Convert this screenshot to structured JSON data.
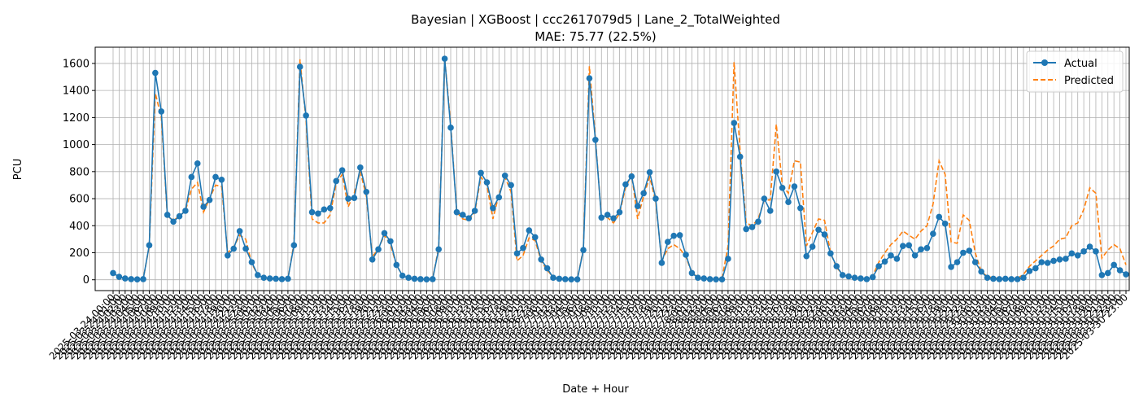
{
  "chart_data": {
    "type": "line",
    "title": "Bayesian | XGBoost | ccc2617079d5 | Lane_2_TotalWeighted",
    "subtitle": "MAE: 75.77 (22.5%)",
    "xlabel": "Date + Hour",
    "ylabel": "PCU",
    "ylim": [
      -80,
      1720
    ],
    "yticks": [
      0,
      200,
      400,
      600,
      800,
      1000,
      1200,
      1400,
      1600
    ],
    "grid": true,
    "legend_position": "top-right",
    "x_start_label": "2025-03-24 00:00",
    "x_end_label": "2025-03-30 23:00",
    "series": [
      {
        "name": "Actual",
        "color": "#1f77b4",
        "style": "solid-with-markers",
        "values": [
          50,
          22,
          10,
          5,
          3,
          5,
          255,
          1530,
          1245,
          480,
          430,
          470,
          510,
          760,
          860,
          540,
          590,
          760,
          740,
          180,
          230,
          360,
          230,
          130,
          35,
          15,
          10,
          8,
          5,
          8,
          255,
          1575,
          1215,
          500,
          490,
          520,
          530,
          730,
          810,
          600,
          605,
          830,
          650,
          150,
          225,
          345,
          285,
          110,
          30,
          15,
          8,
          5,
          3,
          5,
          225,
          1635,
          1125,
          500,
          480,
          455,
          510,
          790,
          720,
          530,
          610,
          770,
          700,
          195,
          235,
          365,
          315,
          150,
          85,
          15,
          8,
          5,
          3,
          3,
          220,
          1490,
          1035,
          460,
          480,
          455,
          500,
          705,
          765,
          545,
          640,
          795,
          600,
          125,
          280,
          325,
          330,
          185,
          50,
          15,
          10,
          5,
          3,
          3,
          155,
          1160,
          910,
          375,
          390,
          430,
          600,
          510,
          800,
          680,
          575,
          690,
          530,
          175,
          245,
          370,
          335,
          195,
          100,
          35,
          25,
          15,
          10,
          5,
          20,
          100,
          135,
          180,
          155,
          250,
          255,
          180,
          225,
          235,
          340,
          465,
          415,
          95,
          130,
          200,
          215,
          130,
          60,
          15,
          8,
          5,
          8,
          5,
          5,
          15,
          65,
          85,
          130,
          125,
          140,
          150,
          155,
          195,
          180,
          210,
          245,
          210,
          35,
          50,
          110,
          70,
          40
        ]
      },
      {
        "name": "Predicted",
        "color": "#ff7f0e",
        "style": "dashed",
        "values": [
          50,
          20,
          10,
          5,
          3,
          5,
          250,
          1380,
          1200,
          470,
          440,
          470,
          510,
          670,
          720,
          500,
          600,
          700,
          690,
          200,
          240,
          330,
          300,
          120,
          35,
          15,
          10,
          8,
          5,
          8,
          270,
          1630,
          1180,
          450,
          420,
          420,
          480,
          710,
          780,
          540,
          640,
          800,
          620,
          170,
          230,
          330,
          260,
          110,
          30,
          15,
          8,
          5,
          3,
          5,
          240,
          1640,
          1150,
          500,
          450,
          440,
          500,
          760,
          700,
          450,
          630,
          760,
          650,
          140,
          180,
          310,
          290,
          140,
          70,
          20,
          10,
          5,
          5,
          3,
          230,
          1580,
          1050,
          460,
          460,
          420,
          490,
          680,
          780,
          450,
          620,
          760,
          580,
          140,
          230,
          260,
          230,
          170,
          50,
          20,
          10,
          5,
          5,
          10,
          250,
          1610,
          950,
          420,
          400,
          450,
          590,
          590,
          1150,
          700,
          640,
          880,
          870,
          250,
          350,
          450,
          440,
          200,
          90,
          40,
          25,
          15,
          10,
          5,
          30,
          130,
          200,
          260,
          300,
          360,
          330,
          300,
          360,
          400,
          560,
          880,
          780,
          280,
          270,
          480,
          440,
          200,
          60,
          25,
          15,
          10,
          8,
          8,
          10,
          40,
          100,
          140,
          180,
          220,
          250,
          300,
          310,
          400,
          420,
          520,
          680,
          640,
          160,
          220,
          260,
          230,
          110
        ]
      }
    ]
  }
}
